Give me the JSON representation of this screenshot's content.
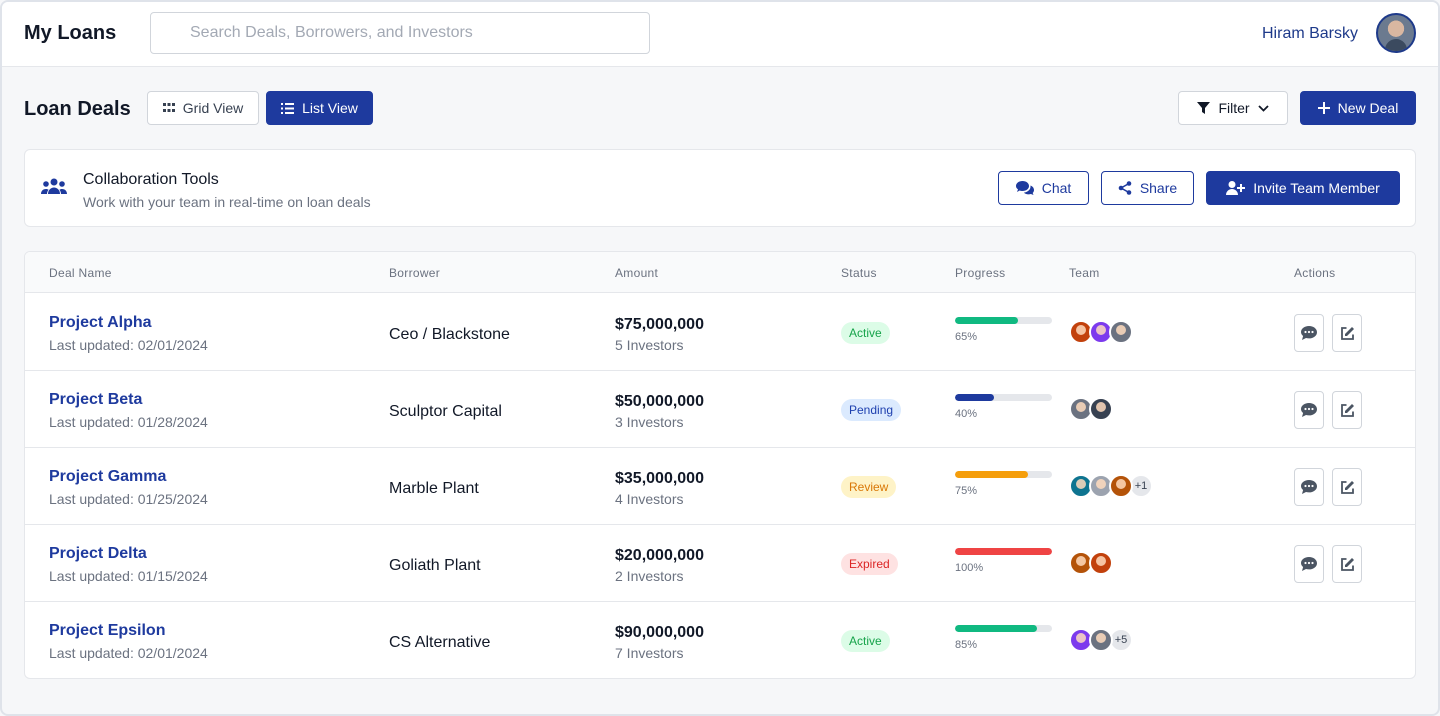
{
  "header": {
    "title": "My Loans",
    "search_placeholder": "Search Deals, Borrowers, and Investors",
    "user_name": "Hiram Barsky"
  },
  "toolbar": {
    "section_title": "Loan Deals",
    "grid_view_label": "Grid View",
    "list_view_label": "List View",
    "filter_label": "Filter",
    "new_deal_label": "New Deal"
  },
  "collaboration": {
    "title": "Collaboration Tools",
    "subtitle": "Work with your team in real-time on loan deals",
    "chat_label": "Chat",
    "share_label": "Share",
    "invite_label": "Invite Team Member"
  },
  "table": {
    "headers": [
      "Deal Name",
      "Borrower",
      "Amount",
      "Status",
      "Progress",
      "Team",
      "Actions"
    ],
    "rows": [
      {
        "name": "Project Alpha",
        "updated": "Last updated: 02/01/2024",
        "borrower": "Ceo / Blackstone",
        "amount": "$75,000,000",
        "investors": "5 Investors",
        "status": "Active",
        "progress": 65,
        "progress_label": "65%",
        "team_more": ""
      },
      {
        "name": "Project Beta",
        "updated": "Last updated: 01/28/2024",
        "borrower": "Sculptor Capital",
        "amount": "$50,000,000",
        "investors": "3 Investors",
        "status": "Pending",
        "progress": 40,
        "progress_label": "40%",
        "team_more": ""
      },
      {
        "name": "Project Gamma",
        "updated": "Last updated: 01/25/2024",
        "borrower": "Marble Plant",
        "amount": "$35,000,000",
        "investors": "4 Investors",
        "status": "Review",
        "progress": 75,
        "progress_label": "75%",
        "team_more": "+1"
      },
      {
        "name": "Project Delta",
        "updated": "Last updated: 01/15/2024",
        "borrower": "Goliath Plant",
        "amount": "$20,000,000",
        "investors": "2 Investors",
        "status": "Expired",
        "progress": 100,
        "progress_label": "100%",
        "team_more": ""
      },
      {
        "name": "Project Epsilon",
        "updated": "Last updated: 02/01/2024",
        "borrower": "CS Alternative",
        "amount": "$90,000,000",
        "investors": "7 Investors",
        "status": "Active",
        "progress": 85,
        "progress_label": "85%",
        "team_more": "+5"
      }
    ]
  },
  "colors": {
    "primary": "#1e3a9e",
    "active_bg": "#dcfce7",
    "active_fg": "#16a34a",
    "active_bar": "#10b981",
    "pending_bg": "#dbeafe",
    "pending_fg": "#1e40af",
    "pending_bar": "#1e3a9e",
    "review_bg": "#fef3c7",
    "review_fg": "#d97706",
    "review_bar": "#f59e0b",
    "expired_bg": "#fee2e2",
    "expired_fg": "#dc2626",
    "expired_bar": "#ef4444"
  }
}
